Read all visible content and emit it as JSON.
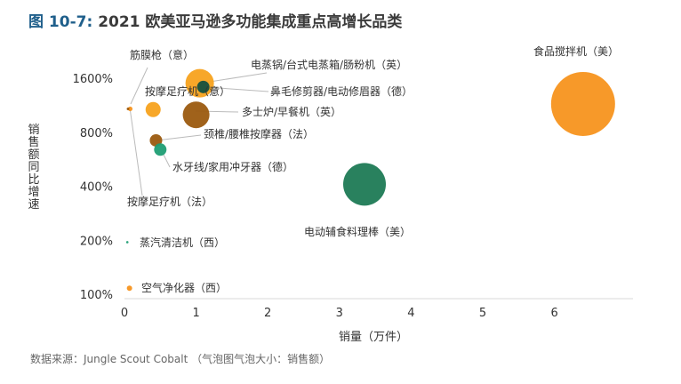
{
  "figure": {
    "number": "图 10-7:",
    "title": "2021 欧美亚马逊多功能集成重点高增长品类",
    "source": "数据来源：Jungle Scout Cobalt （气泡图气泡大小：销售额）"
  },
  "chart_data": {
    "type": "scatter",
    "subtype": "bubble",
    "title": "2021 欧美亚马逊多功能集成重点高增长品类",
    "xlabel": "销量（万件）",
    "ylabel": "销售额同比增速",
    "xlim": [
      0,
      7.2
    ],
    "x_ticks": [
      0,
      1,
      2,
      3,
      4,
      5,
      6
    ],
    "y_scale": "log",
    "y_ticks": [
      100,
      200,
      400,
      800,
      1600
    ],
    "y_tick_labels": [
      "100%",
      "200%",
      "400%",
      "800%",
      "1600%"
    ],
    "ylim": [
      95,
      2400
    ],
    "grid": false,
    "legend": "none",
    "bubble_size_meaning": "销售额",
    "points": [
      {
        "label": "食品搅拌机（美）",
        "x": 6.4,
        "y": 1150,
        "size": 36,
        "color": "#f7931e"
      },
      {
        "label": "电动辅食料理棒（美）",
        "x": 3.35,
        "y": 410,
        "size": 24,
        "color": "#1e7a55"
      },
      {
        "label": "电蒸锅/台式电蒸箱/肠粉机（英）",
        "x": 1.05,
        "y": 1500,
        "size": 16,
        "color": "#f7a21e"
      },
      {
        "label": "鼻毛修剪器/电动修眉器（德）",
        "x": 1.1,
        "y": 1430,
        "size": 7,
        "color": "#14503f"
      },
      {
        "label": "多士炉/早餐机（英）",
        "x": 1.0,
        "y": 1000,
        "size": 15,
        "color": "#9b5a0f"
      },
      {
        "label": "按摩足疗机（意）",
        "x": 0.4,
        "y": 1070,
        "size": 8.5,
        "color": "#f7a21e"
      },
      {
        "label": "颈椎/腰椎按摩器（法）",
        "x": 0.44,
        "y": 720,
        "size": 7,
        "color": "#9b5a0f"
      },
      {
        "label": "水牙线/家用冲牙器（德）",
        "x": 0.5,
        "y": 640,
        "size": 7,
        "color": "#1f9e74"
      },
      {
        "label": "筋膜枪（意）",
        "x": 0.08,
        "y": 1080,
        "size": 2.6,
        "color": "#f7931e"
      },
      {
        "label": "按摩足疗机（法）",
        "x": 0.05,
        "y": 1080,
        "size": 1.5,
        "color": "#9b5a0f"
      },
      {
        "label": "蒸汽清洁机（西）",
        "x": 0.04,
        "y": 195,
        "size": 1.3,
        "color": "#1f9e74"
      },
      {
        "label": "空气净化器（西）",
        "x": 0.07,
        "y": 108,
        "size": 3,
        "color": "#f7931e"
      }
    ]
  }
}
